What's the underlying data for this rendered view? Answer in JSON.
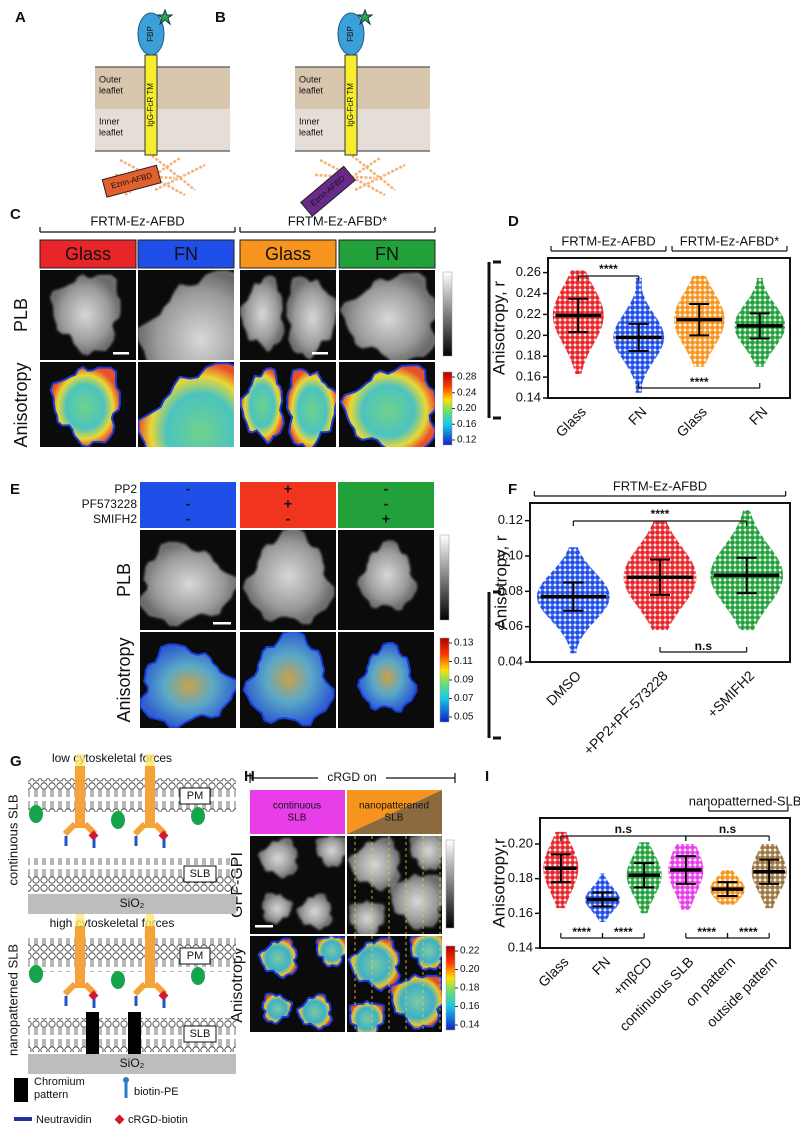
{
  "panel_a": {
    "letter": "A",
    "fbp": "FBP",
    "tm": "IgG-FcR TM",
    "outer": [
      "Outer",
      "leaflet"
    ],
    "inner": [
      "Inner",
      "leaflet"
    ],
    "probe": "Ezrin-AFBD"
  },
  "panel_b": {
    "letter": "B",
    "fbp": "FBP",
    "tm": "IgG-FcR TM",
    "outer": [
      "Outer",
      "leaflet"
    ],
    "inner": [
      "Inner",
      "leaflet"
    ],
    "probe": "Ezrin-AFBD"
  },
  "panel_c": {
    "letter": "C",
    "groups": [
      "FRTM-Ez-AFBD",
      "FRTM-Ez-AFBD*"
    ],
    "conditions": [
      "Glass",
      "FN",
      "Glass",
      "FN"
    ],
    "colors": [
      "#e8262a",
      "#1f4ee8",
      "#f7941d",
      "#22a03a"
    ],
    "rows": [
      "PLB",
      "Anisotropy"
    ],
    "colorbar": [
      0.28,
      0.24,
      {
        "value": 0.2,
        "label": "0.20"
      },
      0.16,
      0.12
    ]
  },
  "panel_d": {
    "letter": "D",
    "ylabel": "Anisotropy, r",
    "categories": [
      "Glass",
      "FN",
      "Glass",
      "FN"
    ],
    "colors": [
      "#e8262a",
      "#1f4ee8",
      "#f7941d",
      "#22a03a"
    ],
    "mean": [
      0.219,
      0.198,
      0.215,
      0.209
    ],
    "sd": [
      0.016,
      0.013,
      0.015,
      0.012
    ],
    "min": [
      0.163,
      0.145,
      0.17,
      0.17
    ],
    "max": [
      0.262,
      0.255,
      0.257,
      0.255
    ],
    "ylim": [
      0.14,
      0.274
    ],
    "yticks": [
      0.14,
      0.16,
      0.18,
      {
        "value": 0.2,
        "label": "0.20"
      },
      0.22,
      0.24,
      0.26
    ],
    "groups": [
      {
        "label": "FRTM-Ez-AFBD",
        "from": 0,
        "to": 1
      },
      {
        "label": "FRTM-Ez-AFBD*",
        "from": 2,
        "to": 3
      }
    ],
    "sig": [
      {
        "label": "****",
        "from": 0,
        "to": 1,
        "side": "above"
      },
      {
        "label": "****",
        "from": 1,
        "to": 3,
        "side": "below"
      }
    ]
  },
  "panel_e": {
    "letter": "E",
    "treatments": [
      "PP2",
      "PF573228",
      "SMIFH2"
    ],
    "conditions": [
      [
        "-",
        "-",
        "-"
      ],
      [
        "+",
        "+",
        "-"
      ],
      [
        "-",
        "-",
        "+"
      ]
    ],
    "colors": [
      "#1f4ee8",
      "#f0341e",
      "#22a03a"
    ],
    "rows": [
      "PLB",
      "Anisotropy"
    ],
    "colorbar": [
      0.13,
      0.11,
      0.09,
      0.07,
      0.05
    ]
  },
  "panel_f": {
    "letter": "F",
    "ylabel": "Anisotropy, r",
    "categories": [
      "DMSO",
      "+PP2+PF-573228",
      "+SMIFH2"
    ],
    "colors": [
      "#1f4ee8",
      "#e8262a",
      "#22a03a"
    ],
    "mean": [
      0.077,
      0.088,
      0.089
    ],
    "sd": [
      0.008,
      0.01,
      0.01
    ],
    "min": [
      0.045,
      0.058,
      0.058
    ],
    "max": [
      0.105,
      0.12,
      0.126
    ],
    "ylim": [
      0.04,
      0.13
    ],
    "yticks": [
      0.04,
      0.06,
      0.08,
      {
        "value": 0.1,
        "label": "0.10"
      },
      0.12
    ],
    "groups": [
      {
        "label": "FRTM-Ez-AFBD",
        "from": 0,
        "to": 2
      }
    ],
    "sig": [
      {
        "label": "****",
        "from": 0,
        "to": 2,
        "side": "above"
      },
      {
        "label": "n.s",
        "from": 1,
        "to": 2,
        "side": "below"
      }
    ]
  },
  "panel_g": {
    "letter": "G",
    "top_title": "low cytoskeletal forces",
    "top_side": "continuous SLB",
    "bottom_title": "high cytoskeletal forces",
    "bottom_side": "nanopatterned SLB",
    "pm": "PM",
    "slb": "SLB",
    "substrate": "SiO₂",
    "legend": {
      "chromium": [
        "Chromium",
        "pattern"
      ],
      "biotin_pe": "biotin-PE",
      "neutravidin": "Neutravidin",
      "crgd": "cRGD-biotin"
    }
  },
  "panel_h": {
    "letter": "H",
    "header": "cRGD on",
    "conditions": [
      [
        "continuous",
        "SLB"
      ],
      [
        "nanopatterened",
        "SLB"
      ]
    ],
    "rows": [
      "GFP-GPI",
      "Anisotropy"
    ],
    "colorbar": [
      0.22,
      {
        "value": 0.2,
        "label": "0.20"
      },
      0.18,
      0.16,
      0.14
    ]
  },
  "panel_i": {
    "letter": "I",
    "ylabel": "Anisotropy,r",
    "categories": [
      "Glass",
      "FN",
      "+mβCD",
      "continuous SLB",
      "on pattern",
      "outside pattern"
    ],
    "colors": [
      "#e8262a",
      "#1f4ee8",
      "#22a03a",
      "#e83ee8",
      "#f7941d",
      "#9b7540"
    ],
    "mean": [
      0.186,
      0.168,
      0.182,
      0.185,
      0.174,
      0.184
    ],
    "sd": [
      0.008,
      0.004,
      0.007,
      0.008,
      0.004,
      0.007
    ],
    "min": [
      0.163,
      0.155,
      0.16,
      0.162,
      0.165,
      0.163
    ],
    "max": [
      0.207,
      0.183,
      0.201,
      0.2,
      0.185,
      0.2
    ],
    "ylim": [
      0.14,
      0.215
    ],
    "yticks": [
      0.14,
      0.16,
      0.18,
      {
        "value": 0.2,
        "label": "0.20"
      }
    ],
    "groups": [
      {
        "label": "nanopatterned-SLBs",
        "from": 4,
        "to": 5
      }
    ],
    "sig": [
      {
        "label": "n.s",
        "from": 0,
        "to": 3,
        "side": "above"
      },
      {
        "label": "n.s",
        "from": 3,
        "to": 5,
        "side": "above"
      },
      {
        "label": "****",
        "from": 0,
        "to": 1,
        "side": "below"
      },
      {
        "label": "****",
        "from": 1,
        "to": 2,
        "side": "below"
      },
      {
        "label": "****",
        "from": 3,
        "to": 4,
        "side": "below"
      },
      {
        "label": "****",
        "from": 4,
        "to": 5,
        "side": "below"
      }
    ]
  }
}
